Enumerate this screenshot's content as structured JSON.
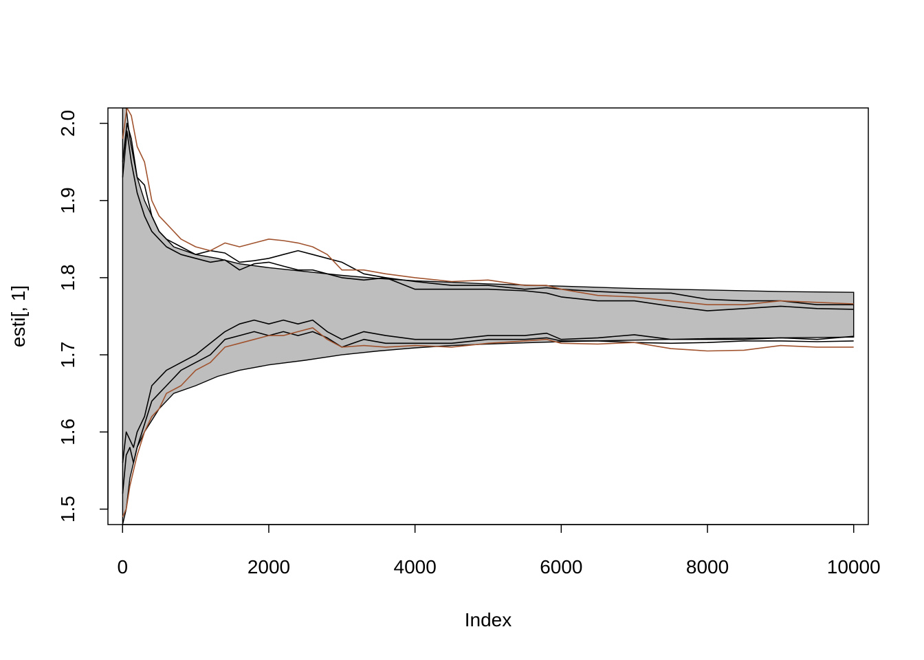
{
  "chart_data": {
    "type": "line",
    "title": "",
    "xlabel": "Index",
    "ylabel": "esti[, 1]",
    "xlim": [
      -200,
      10200
    ],
    "ylim": [
      1.48,
      2.02
    ],
    "xticks": [
      0,
      2000,
      4000,
      6000,
      8000,
      10000
    ],
    "xtick_labels": [
      "0",
      "2000",
      "4000",
      "6000",
      "8000",
      "10000"
    ],
    "yticks": [
      1.5,
      1.6,
      1.7,
      1.8,
      1.9,
      2.0
    ],
    "ytick_labels": [
      "1.5",
      "1.6",
      "1.7",
      "1.8",
      "1.9",
      "2.0"
    ],
    "grid": false,
    "legend": "none",
    "colors": {
      "band_fill": "#bebebe",
      "black": "#000000",
      "brown": "#a0522d"
    },
    "band": {
      "description_index": [
        1,
        50,
        100,
        200,
        300,
        500,
        700,
        1000,
        1300,
        1600,
        2000,
        2500,
        3000,
        3500,
        4000,
        4500,
        5000,
        6000,
        7000,
        8000,
        9000,
        10000
      ],
      "upper": [
        2.02,
        2.02,
        1.98,
        1.93,
        1.9,
        1.86,
        1.84,
        1.83,
        1.825,
        1.818,
        1.813,
        1.808,
        1.803,
        1.799,
        1.796,
        1.794,
        1.792,
        1.789,
        1.786,
        1.784,
        1.782,
        1.781
      ],
      "lower": [
        1.48,
        1.5,
        1.54,
        1.58,
        1.6,
        1.63,
        1.65,
        1.66,
        1.672,
        1.68,
        1.687,
        1.693,
        1.7,
        1.705,
        1.709,
        1.712,
        1.714,
        1.717,
        1.719,
        1.721,
        1.722,
        1.723
      ]
    },
    "series": [
      {
        "color": "black",
        "x": [
          1,
          60,
          120,
          200,
          300,
          400,
          500,
          600,
          800,
          1000,
          1200,
          1400,
          1600,
          1800,
          2000,
          2200,
          2400,
          2600,
          2800,
          3000,
          3300,
          3600,
          4000,
          4500,
          5000,
          5500,
          5800,
          6000,
          6500,
          7000,
          7500,
          8000,
          8500,
          9000,
          9500,
          10000
        ],
        "y": [
          1.95,
          2.0,
          1.98,
          1.93,
          1.92,
          1.88,
          1.86,
          1.85,
          1.84,
          1.83,
          1.835,
          1.832,
          1.82,
          1.822,
          1.825,
          1.83,
          1.835,
          1.83,
          1.825,
          1.82,
          1.805,
          1.8,
          1.795,
          1.79,
          1.79,
          1.785,
          1.787,
          1.785,
          1.782,
          1.78,
          1.78,
          1.772,
          1.77,
          1.77,
          1.765,
          1.765
        ]
      },
      {
        "color": "black",
        "x": [
          1,
          60,
          120,
          200,
          300,
          400,
          500,
          600,
          800,
          1000,
          1200,
          1400,
          1600,
          1800,
          2000,
          2200,
          2400,
          2600,
          2800,
          3000,
          3300,
          3600,
          4000,
          4500,
          5000,
          5500,
          5800,
          6000,
          6500,
          7000,
          7500,
          8000,
          8500,
          9000,
          9500,
          10000
        ],
        "y": [
          1.93,
          1.99,
          1.95,
          1.91,
          1.88,
          1.86,
          1.85,
          1.84,
          1.83,
          1.825,
          1.82,
          1.823,
          1.81,
          1.818,
          1.82,
          1.815,
          1.81,
          1.81,
          1.805,
          1.8,
          1.797,
          1.8,
          1.785,
          1.785,
          1.785,
          1.783,
          1.78,
          1.775,
          1.77,
          1.77,
          1.763,
          1.757,
          1.76,
          1.763,
          1.76,
          1.759
        ]
      },
      {
        "color": "brown",
        "x": [
          1,
          60,
          120,
          200,
          300,
          400,
          500,
          600,
          800,
          1000,
          1200,
          1400,
          1600,
          1800,
          2000,
          2200,
          2400,
          2600,
          2800,
          3000,
          3300,
          3600,
          4000,
          4500,
          5000,
          5500,
          5800,
          6000,
          6500,
          7000,
          7500,
          8000,
          8500,
          9000,
          9500,
          10000
        ],
        "y": [
          1.98,
          2.02,
          2.01,
          1.97,
          1.95,
          1.9,
          1.88,
          1.87,
          1.85,
          1.84,
          1.835,
          1.845,
          1.84,
          1.845,
          1.85,
          1.848,
          1.845,
          1.84,
          1.83,
          1.81,
          1.81,
          1.805,
          1.8,
          1.795,
          1.797,
          1.79,
          1.79,
          1.785,
          1.777,
          1.775,
          1.77,
          1.765,
          1.765,
          1.77,
          1.768,
          1.766
        ]
      },
      {
        "color": "black",
        "x": [
          1,
          50,
          100,
          150,
          200,
          300,
          400,
          500,
          600,
          800,
          1000,
          1200,
          1400,
          1600,
          1800,
          2000,
          2200,
          2400,
          2600,
          2800,
          3000,
          3300,
          3600,
          4000,
          4500,
          5000,
          5500,
          5800,
          6000,
          6500,
          7000,
          7500,
          8000,
          8500,
          9000,
          9500,
          10000
        ],
        "y": [
          1.56,
          1.6,
          1.59,
          1.58,
          1.6,
          1.62,
          1.66,
          1.67,
          1.68,
          1.69,
          1.7,
          1.715,
          1.73,
          1.74,
          1.745,
          1.74,
          1.745,
          1.74,
          1.745,
          1.73,
          1.72,
          1.73,
          1.725,
          1.72,
          1.72,
          1.725,
          1.725,
          1.728,
          1.72,
          1.722,
          1.726,
          1.72,
          1.72,
          1.72,
          1.722,
          1.72,
          1.724
        ]
      },
      {
        "color": "black",
        "x": [
          1,
          50,
          100,
          150,
          200,
          300,
          400,
          500,
          600,
          800,
          1000,
          1200,
          1400,
          1600,
          1800,
          2000,
          2200,
          2400,
          2600,
          2800,
          3000,
          3300,
          3600,
          4000,
          4500,
          5000,
          5500,
          5800,
          6000,
          6500,
          7000,
          7500,
          8000,
          8500,
          9000,
          9500,
          10000
        ],
        "y": [
          1.52,
          1.57,
          1.58,
          1.56,
          1.58,
          1.61,
          1.64,
          1.65,
          1.66,
          1.68,
          1.69,
          1.7,
          1.72,
          1.725,
          1.73,
          1.725,
          1.73,
          1.725,
          1.73,
          1.722,
          1.71,
          1.72,
          1.715,
          1.715,
          1.715,
          1.72,
          1.72,
          1.722,
          1.718,
          1.718,
          1.716,
          1.715,
          1.716,
          1.718,
          1.718,
          1.717,
          1.718
        ]
      },
      {
        "color": "brown",
        "x": [
          1,
          50,
          100,
          150,
          200,
          300,
          400,
          500,
          600,
          800,
          1000,
          1200,
          1400,
          1600,
          1800,
          2000,
          2200,
          2400,
          2600,
          2800,
          3000,
          3300,
          3600,
          4000,
          4500,
          5000,
          5500,
          5800,
          6000,
          6500,
          7000,
          7500,
          8000,
          8500,
          9000,
          9500,
          10000
        ],
        "y": [
          1.49,
          1.5,
          1.53,
          1.55,
          1.57,
          1.6,
          1.62,
          1.63,
          1.65,
          1.66,
          1.68,
          1.69,
          1.71,
          1.715,
          1.72,
          1.725,
          1.725,
          1.73,
          1.735,
          1.72,
          1.71,
          1.712,
          1.71,
          1.712,
          1.71,
          1.715,
          1.718,
          1.72,
          1.715,
          1.714,
          1.716,
          1.708,
          1.705,
          1.706,
          1.712,
          1.71,
          1.71
        ]
      }
    ]
  }
}
